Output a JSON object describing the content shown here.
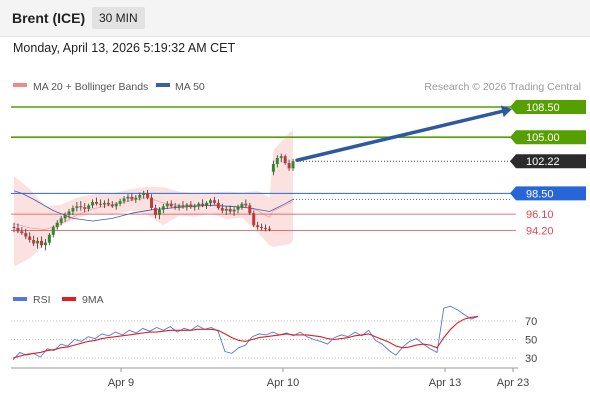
{
  "header": {
    "instrument": "Brent (ICE)",
    "timeframe": "30 MIN",
    "datetime": "Monday, April 13, 2026 5:19:32 AM CET"
  },
  "legend": {
    "bollinger": "MA 20 + Bollinger Bands",
    "ma50": "MA 50",
    "credit": "Research © 2026 Trading Central"
  },
  "colors": {
    "green_level": "#55a000",
    "blue_level": "#2766d6",
    "red_level": "#e4464e",
    "current_price": "#2b2b2b",
    "bull_candle": "#2f8a2f",
    "bear_candle": "#c0383c",
    "bollinger_fill": "#fbdcdc",
    "ma20": "#ef8a8a",
    "ma50": "#3a5fa8",
    "rsi": "#5577dd",
    "rsi_ma": "#e02020",
    "arrow": "#2d5a9e"
  },
  "chart_data": [
    {
      "type": "candlestick",
      "title": "Brent (ICE) 30 MIN",
      "x_ticks": [
        "Apr 9",
        "Apr 10",
        "Apr 13",
        "Apr 23"
      ],
      "price_levels": [
        {
          "label": "108.50",
          "value": 108.5,
          "kind": "resistance"
        },
        {
          "label": "105.00",
          "value": 105.0,
          "kind": "resistance"
        },
        {
          "label": "102.22",
          "value": 102.22,
          "kind": "current"
        },
        {
          "label": "98.50",
          "value": 98.5,
          "kind": "pivot"
        },
        {
          "label": "96.10",
          "value": 96.1,
          "kind": "support"
        },
        {
          "label": "94.20",
          "value": 94.2,
          "kind": "support"
        }
      ],
      "ohlc": [
        [
          94.6,
          95.1,
          94.0,
          94.5
        ],
        [
          94.5,
          95.0,
          93.9,
          94.1
        ],
        [
          94.1,
          94.6,
          93.7,
          93.9
        ],
        [
          93.9,
          94.4,
          93.2,
          93.5
        ],
        [
          93.5,
          94.0,
          92.8,
          93.1
        ],
        [
          93.1,
          93.6,
          92.4,
          92.7
        ],
        [
          92.7,
          93.4,
          92.1,
          93.0
        ],
        [
          93.0,
          93.5,
          92.2,
          92.5
        ],
        [
          92.5,
          93.2,
          91.9,
          92.8
        ],
        [
          92.8,
          93.9,
          92.5,
          93.7
        ],
        [
          93.7,
          94.8,
          93.4,
          94.6
        ],
        [
          94.6,
          95.4,
          94.3,
          95.1
        ],
        [
          95.1,
          95.9,
          94.8,
          95.6
        ],
        [
          95.6,
          96.3,
          95.2,
          96.0
        ],
        [
          96.0,
          96.7,
          95.6,
          96.4
        ],
        [
          96.4,
          97.1,
          96.0,
          96.8
        ],
        [
          96.8,
          97.5,
          96.4,
          97.0
        ],
        [
          97.0,
          97.6,
          96.5,
          96.9
        ],
        [
          96.9,
          97.4,
          96.3,
          96.7
        ],
        [
          96.7,
          97.3,
          96.4,
          97.1
        ],
        [
          97.1,
          97.8,
          96.8,
          97.5
        ],
        [
          97.5,
          98.0,
          97.1,
          97.3
        ],
        [
          97.3,
          97.8,
          96.9,
          97.2
        ],
        [
          97.2,
          97.7,
          96.8,
          97.4
        ],
        [
          97.4,
          97.9,
          97.0,
          97.2
        ],
        [
          97.2,
          97.6,
          96.8,
          97.0
        ],
        [
          97.0,
          97.5,
          96.6,
          97.3
        ],
        [
          97.3,
          97.9,
          97.0,
          97.6
        ],
        [
          97.6,
          98.2,
          97.3,
          97.9
        ],
        [
          97.9,
          98.4,
          97.5,
          98.1
        ],
        [
          98.1,
          98.5,
          97.6,
          97.8
        ],
        [
          97.8,
          98.3,
          97.4,
          98.0
        ],
        [
          98.0,
          98.6,
          97.7,
          98.3
        ],
        [
          98.3,
          98.8,
          97.9,
          98.5
        ],
        [
          98.5,
          98.9,
          97.8,
          98.0
        ],
        [
          98.0,
          98.4,
          96.6,
          96.8
        ],
        [
          96.8,
          97.2,
          95.6,
          96.0
        ],
        [
          96.0,
          96.9,
          95.5,
          96.6
        ],
        [
          96.6,
          97.3,
          96.2,
          97.0
        ],
        [
          97.0,
          97.6,
          96.7,
          97.3
        ],
        [
          97.3,
          97.7,
          96.8,
          97.0
        ],
        [
          97.0,
          97.4,
          96.6,
          96.9
        ],
        [
          96.9,
          97.3,
          96.5,
          97.1
        ],
        [
          97.1,
          97.6,
          96.7,
          96.9
        ],
        [
          96.9,
          97.4,
          96.5,
          97.2
        ],
        [
          97.2,
          97.6,
          96.7,
          96.9
        ],
        [
          96.9,
          97.3,
          96.5,
          97.0
        ],
        [
          97.0,
          97.5,
          96.6,
          97.3
        ],
        [
          97.3,
          97.8,
          96.9,
          97.1
        ],
        [
          97.1,
          97.6,
          96.7,
          97.4
        ],
        [
          97.4,
          97.9,
          97.0,
          97.7
        ],
        [
          97.7,
          98.1,
          97.2,
          97.4
        ],
        [
          97.4,
          97.8,
          96.6,
          96.8
        ],
        [
          96.8,
          97.3,
          96.2,
          96.5
        ],
        [
          96.5,
          97.0,
          96.0,
          96.7
        ],
        [
          96.7,
          97.1,
          96.1,
          96.4
        ],
        [
          96.4,
          96.9,
          95.9,
          96.6
        ],
        [
          96.6,
          97.2,
          96.2,
          96.9
        ],
        [
          96.9,
          97.5,
          96.6,
          97.3
        ],
        [
          97.3,
          97.8,
          96.9,
          97.1
        ],
        [
          97.1,
          97.4,
          96.0,
          96.2
        ],
        [
          96.2,
          96.5,
          94.6,
          94.8
        ],
        [
          94.8,
          95.2,
          94.3,
          94.6
        ],
        [
          94.6,
          95.0,
          94.2,
          94.5
        ],
        [
          94.5,
          94.9,
          94.1,
          94.4
        ],
        [
          94.4,
          94.7,
          94.1,
          94.3
        ],
        [
          101.0,
          102.3,
          100.6,
          101.9
        ],
        [
          101.9,
          102.9,
          101.5,
          102.6
        ],
        [
          102.6,
          103.1,
          102.1,
          102.8
        ],
        [
          102.8,
          103.0,
          101.8,
          102.0
        ],
        [
          102.0,
          102.4,
          101.1,
          101.4
        ],
        [
          101.4,
          102.5,
          101.1,
          102.22
        ]
      ],
      "ma50": [
        [
          0,
          98.8
        ],
        [
          2,
          98.5
        ],
        [
          5,
          97.8
        ],
        [
          10,
          96.5
        ],
        [
          15,
          95.6
        ],
        [
          20,
          95.3
        ],
        [
          25,
          95.6
        ],
        [
          30,
          96.2
        ],
        [
          35,
          96.6
        ],
        [
          40,
          96.8
        ],
        [
          45,
          97.0
        ],
        [
          50,
          97.1
        ],
        [
          55,
          97.0
        ],
        [
          60,
          96.8
        ],
        [
          65,
          96.4
        ],
        [
          69,
          97.3
        ],
        [
          71,
          97.8
        ]
      ],
      "bollinger_band": {
        "upper": [
          [
            0,
            100.5
          ],
          [
            4,
            99.0
          ],
          [
            8,
            97.0
          ],
          [
            12,
            97.2
          ],
          [
            16,
            98.0
          ],
          [
            20,
            98.4
          ],
          [
            25,
            98.5
          ],
          [
            30,
            99.0
          ],
          [
            34,
            99.3
          ],
          [
            38,
            99.2
          ],
          [
            42,
            98.7
          ],
          [
            46,
            98.5
          ],
          [
            50,
            98.6
          ],
          [
            54,
            98.7
          ],
          [
            58,
            98.6
          ],
          [
            62,
            98.8
          ],
          [
            65,
            98.0
          ],
          [
            66,
            103.5
          ],
          [
            70,
            105.5
          ],
          [
            71,
            105.8
          ]
        ],
        "lower": [
          [
            0,
            90.0
          ],
          [
            4,
            91.0
          ],
          [
            8,
            92.6
          ],
          [
            12,
            94.8
          ],
          [
            16,
            95.6
          ],
          [
            20,
            96.2
          ],
          [
            25,
            96.0
          ],
          [
            30,
            96.5
          ],
          [
            34,
            96.0
          ],
          [
            38,
            94.8
          ],
          [
            42,
            95.9
          ],
          [
            46,
            95.8
          ],
          [
            50,
            96.2
          ],
          [
            54,
            95.5
          ],
          [
            58,
            95.7
          ],
          [
            62,
            94.0
          ],
          [
            65,
            92.5
          ],
          [
            66,
            92.3
          ],
          [
            70,
            92.6
          ],
          [
            71,
            93.0
          ]
        ],
        "ma20": [
          [
            0,
            95.0
          ],
          [
            4,
            94.5
          ],
          [
            8,
            94.3
          ],
          [
            12,
            95.0
          ],
          [
            16,
            96.0
          ],
          [
            20,
            96.7
          ],
          [
            25,
            97.2
          ],
          [
            30,
            97.7
          ],
          [
            34,
            98.0
          ],
          [
            38,
            97.4
          ],
          [
            42,
            97.1
          ],
          [
            46,
            97.1
          ],
          [
            50,
            97.3
          ],
          [
            54,
            97.0
          ],
          [
            58,
            97.0
          ],
          [
            62,
            96.5
          ],
          [
            65,
            95.7
          ],
          [
            66,
            96.5
          ],
          [
            70,
            97.3
          ],
          [
            71,
            97.6
          ]
        ]
      },
      "forecast_arrow": {
        "from": 102.22,
        "to": 108.5
      }
    },
    {
      "type": "line",
      "title": "RSI",
      "series": [
        {
          "name": "RSI",
          "values": [
            28,
            36,
            33,
            35,
            31,
            40,
            38,
            45,
            43,
            50,
            48,
            53,
            51,
            56,
            54,
            58,
            55,
            60,
            57,
            62,
            59,
            63,
            60,
            64,
            58,
            62,
            60,
            65,
            61,
            63,
            59,
            37,
            35,
            41,
            44,
            53,
            56,
            55,
            58,
            55,
            57,
            54,
            58,
            53,
            50,
            48,
            45,
            52,
            55,
            53,
            58,
            54,
            60,
            49,
            45,
            38,
            33,
            42,
            48,
            51,
            45,
            40,
            36,
            84,
            86,
            82,
            77,
            72,
            75
          ]
        },
        {
          "name": "9MA",
          "values": [
            30,
            32,
            34,
            35,
            36,
            38,
            39,
            41,
            42,
            44,
            46,
            48,
            49,
            51,
            52,
            53,
            54,
            55,
            56,
            57,
            58,
            58,
            59,
            60,
            60,
            60,
            60,
            61,
            61,
            61,
            60,
            56,
            52,
            49,
            48,
            50,
            52,
            53,
            54,
            55,
            56,
            55,
            55,
            55,
            54,
            53,
            51,
            50,
            51,
            52,
            54,
            55,
            56,
            53,
            50,
            47,
            43,
            41,
            42,
            44,
            45,
            44,
            41,
            52,
            61,
            68,
            72,
            74,
            75
          ]
        }
      ],
      "y_ticks": [
        "70",
        "50",
        "30"
      ],
      "ylim": [
        20,
        95
      ]
    }
  ]
}
